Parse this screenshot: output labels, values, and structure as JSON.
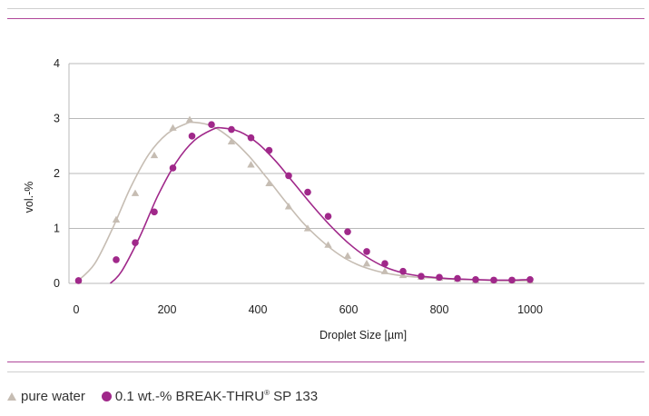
{
  "chart_data": {
    "type": "scatter",
    "xlabel": "Droplet Size [µm]",
    "ylabel": "vol.-%",
    "xlim": [
      0,
      1250
    ],
    "ylim": [
      0,
      4
    ],
    "x_ticks": [
      "0",
      "200",
      "400",
      "600",
      "800",
      "1000"
    ],
    "y_ticks": [
      "0",
      "1",
      "2",
      "3",
      "4"
    ],
    "grid": "horizontal",
    "legend_position": "bottom-left",
    "series": [
      {
        "name": "pure water",
        "marker": "triangle",
        "color": "#c6bdb3",
        "points": [
          [
            5,
            0.05
          ],
          [
            88,
            1.16
          ],
          [
            130,
            1.64
          ],
          [
            172,
            2.33
          ],
          [
            213,
            2.83
          ],
          [
            250,
            2.98
          ],
          [
            342,
            2.58
          ],
          [
            385,
            2.16
          ],
          [
            425,
            1.82
          ],
          [
            468,
            1.4
          ],
          [
            510,
            1.0
          ],
          [
            555,
            0.7
          ],
          [
            598,
            0.5
          ],
          [
            640,
            0.36
          ],
          [
            680,
            0.22
          ],
          [
            720,
            0.15
          ],
          [
            760,
            0.12
          ],
          [
            800,
            0.1
          ],
          [
            840,
            0.08
          ],
          [
            880,
            0.06
          ],
          [
            920,
            0.05
          ],
          [
            960,
            0.05
          ],
          [
            1000,
            0.05
          ]
        ]
      },
      {
        "name": "0.1 wt.-% BREAK-THRU® SP 133",
        "marker": "circle",
        "color": "#a0288a",
        "points": [
          [
            5,
            0.05
          ],
          [
            88,
            0.43
          ],
          [
            130,
            0.74
          ],
          [
            172,
            1.3
          ],
          [
            213,
            2.1
          ],
          [
            255,
            2.68
          ],
          [
            298,
            2.89
          ],
          [
            342,
            2.8
          ],
          [
            385,
            2.65
          ],
          [
            425,
            2.42
          ],
          [
            468,
            1.96
          ],
          [
            510,
            1.66
          ],
          [
            555,
            1.22
          ],
          [
            598,
            0.94
          ],
          [
            640,
            0.58
          ],
          [
            680,
            0.36
          ],
          [
            720,
            0.22
          ],
          [
            760,
            0.13
          ],
          [
            800,
            0.11
          ],
          [
            840,
            0.09
          ],
          [
            880,
            0.07
          ],
          [
            920,
            0.06
          ],
          [
            960,
            0.06
          ],
          [
            1000,
            0.07
          ]
        ]
      }
    ],
    "fit_curves": [
      {
        "color": "#c6bdb3",
        "points": [
          [
            0,
            0.02
          ],
          [
            40,
            0.35
          ],
          [
            80,
            1.0
          ],
          [
            120,
            1.75
          ],
          [
            160,
            2.35
          ],
          [
            200,
            2.72
          ],
          [
            240,
            2.9
          ],
          [
            260,
            2.93
          ],
          [
            300,
            2.86
          ],
          [
            340,
            2.64
          ],
          [
            380,
            2.32
          ],
          [
            420,
            1.92
          ],
          [
            460,
            1.5
          ],
          [
            500,
            1.1
          ],
          [
            540,
            0.78
          ],
          [
            580,
            0.52
          ],
          [
            620,
            0.34
          ],
          [
            660,
            0.23
          ],
          [
            700,
            0.16
          ],
          [
            740,
            0.12
          ],
          [
            780,
            0.1
          ],
          [
            820,
            0.08
          ],
          [
            860,
            0.07
          ],
          [
            900,
            0.06
          ],
          [
            940,
            0.05
          ],
          [
            1000,
            0.05
          ]
        ]
      },
      {
        "color": "#a0288a",
        "points": [
          [
            75,
            0.0
          ],
          [
            100,
            0.22
          ],
          [
            140,
            0.85
          ],
          [
            180,
            1.6
          ],
          [
            220,
            2.2
          ],
          [
            260,
            2.6
          ],
          [
            300,
            2.8
          ],
          [
            320,
            2.83
          ],
          [
            360,
            2.76
          ],
          [
            400,
            2.55
          ],
          [
            440,
            2.22
          ],
          [
            480,
            1.82
          ],
          [
            520,
            1.42
          ],
          [
            560,
            1.05
          ],
          [
            600,
            0.73
          ],
          [
            640,
            0.48
          ],
          [
            680,
            0.3
          ],
          [
            720,
            0.19
          ],
          [
            760,
            0.13
          ],
          [
            800,
            0.1
          ],
          [
            840,
            0.08
          ],
          [
            880,
            0.07
          ],
          [
            920,
            0.06
          ],
          [
            960,
            0.06
          ],
          [
            1000,
            0.07
          ]
        ]
      }
    ]
  },
  "legend": {
    "item1": "pure water",
    "item2_main": "0.1 wt.-% BREAK-THRU",
    "item2_reg": "®",
    "item2_tail": " SP 133"
  }
}
